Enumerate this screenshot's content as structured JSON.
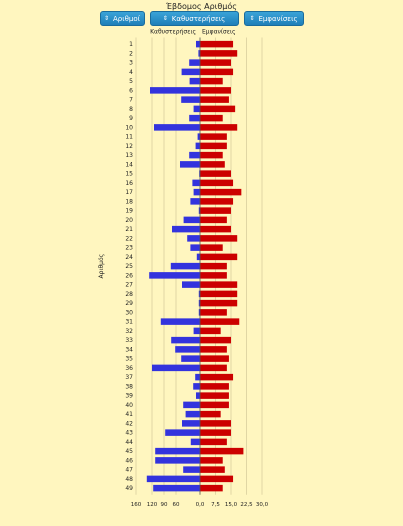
{
  "header": {
    "title": "Έβδομος Αριθμός",
    "buttons": [
      {
        "label": "Αριθμοί",
        "icon": "sort-icon"
      },
      {
        "label": "Καθυστερήσεις",
        "icon": "sort-icon"
      },
      {
        "label": "Εμφανίσεις",
        "icon": "sort-icon"
      }
    ]
  },
  "colors": {
    "delays": "#3333dd",
    "appearances": "#cc0000",
    "background": "#fff6bf"
  },
  "chart_data": {
    "type": "bar",
    "orientation": "horizontal-diverging",
    "title": "Έβδομος Αριθμός",
    "ylabel": "Αριθμός",
    "categories": [
      "1",
      "2",
      "3",
      "4",
      "5",
      "6",
      "7",
      "8",
      "9",
      "10",
      "11",
      "12",
      "13",
      "14",
      "15",
      "16",
      "17",
      "18",
      "19",
      "20",
      "21",
      "22",
      "23",
      "24",
      "25",
      "26",
      "27",
      "28",
      "29",
      "30",
      "31",
      "32",
      "33",
      "34",
      "35",
      "36",
      "37",
      "38",
      "39",
      "40",
      "41",
      "42",
      "43",
      "44",
      "45",
      "46",
      "47",
      "48",
      "49"
    ],
    "series": [
      {
        "name": "Καθυστερήσεις",
        "values": [
          10,
          4,
          27,
          46,
          26,
          125,
          47,
          16,
          27,
          115,
          6,
          11,
          27,
          50,
          2,
          19,
          16,
          24,
          3,
          41,
          70,
          32,
          24,
          8,
          73,
          127,
          45,
          3,
          3,
          3,
          98,
          16,
          72,
          62,
          47,
          120,
          12,
          17,
          10,
          42,
          36,
          45,
          87,
          23,
          112,
          112,
          42,
          133,
          117
        ],
        "xlim": [
          0,
          160
        ],
        "ticks": [
          160,
          120,
          90,
          60,
          0
        ]
      },
      {
        "name": "Εμφανίσεις",
        "values": [
          16,
          18,
          15,
          16,
          11,
          15,
          14,
          17,
          11,
          18,
          13,
          13,
          11,
          12,
          15,
          16,
          20,
          16,
          15,
          13,
          15,
          18,
          11,
          18,
          13,
          13,
          18,
          18,
          18,
          13,
          19,
          10,
          15,
          13,
          14,
          13,
          16,
          14,
          14,
          14,
          10,
          15,
          15,
          13,
          21,
          11,
          12,
          16,
          11
        ],
        "xlim": [
          0,
          30
        ],
        "ticks": [
          0,
          7.5,
          15,
          22.5,
          30
        ],
        "tick_labels": [
          "0,0",
          "7,5",
          "15,0",
          "22,5",
          "30,0"
        ]
      }
    ],
    "grid": true,
    "legend": "top"
  }
}
